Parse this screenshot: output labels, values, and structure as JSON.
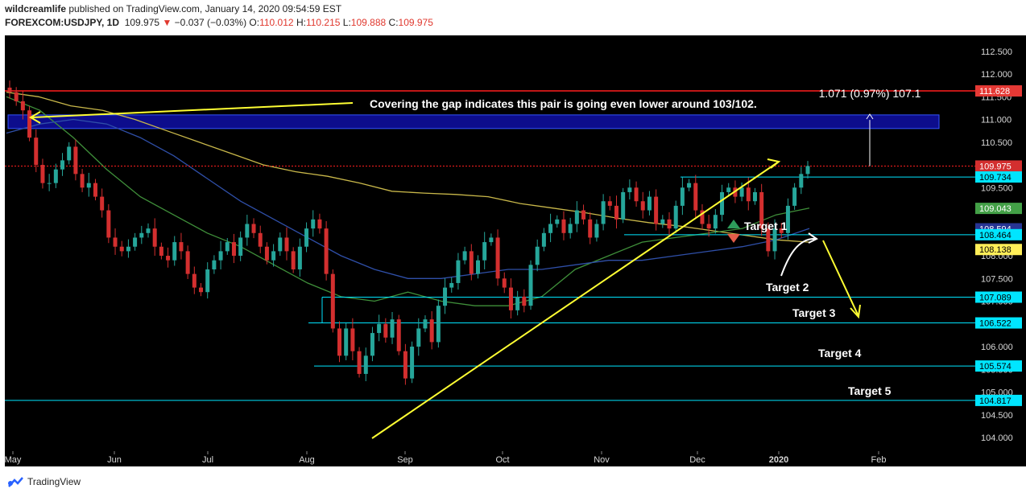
{
  "header": {
    "author": "wildcreamlife",
    "published": "published on TradingView.com, January 14, 2020 09:54:59 EST",
    "symbol": "FOREXCOM:USDJPY, 1D",
    "last": "109.975",
    "change": "−0.037 (−0.03%)",
    "open_label": "O:",
    "open": "110.012",
    "high_label": "H:",
    "high": "110.215",
    "low_label": "L:",
    "low": "109.888",
    "close_label": "C:",
    "close": "109.975"
  },
  "footer": {
    "brand": "TradingView"
  },
  "colors": {
    "background": "#000000",
    "bull": "#26a69a",
    "bear": "#d32f2f",
    "ma_yellow": "#c9b84a",
    "ma_green": "#3f8f3a",
    "ma_blue": "#2f4fa8",
    "cyan": "#00e5ff",
    "resistance": "#ff1e1e",
    "annotation": "#ffff33",
    "gap_zone": "#0d0d8c"
  },
  "chart_data": {
    "type": "candlestick",
    "title": "",
    "ylim": [
      103.7,
      112.85
    ],
    "y_ticks": [
      "112.500",
      "112.000",
      "111.500",
      "111.000",
      "110.500",
      "110.000",
      "109.500",
      "109.000",
      "108.500",
      "108.000",
      "107.500",
      "107.000",
      "106.500",
      "106.000",
      "105.500",
      "105.000",
      "104.500",
      "104.000"
    ],
    "x_ticks": [
      "May",
      "Jun",
      "Jul",
      "Aug",
      "Sep",
      "Oct",
      "Nov",
      "Dec",
      "2020",
      "Feb"
    ],
    "price_labels": [
      {
        "value": 111.628,
        "text": "111.628",
        "bg": "#e53935",
        "fg": "#ffffff"
      },
      {
        "value": 109.975,
        "text": "109.975",
        "bg": "#d32f2f",
        "fg": "#ffffff"
      },
      {
        "value": 109.734,
        "text": "109.734",
        "bg": "#00e5ff",
        "fg": "#000000"
      },
      {
        "value": 109.043,
        "text": "109.043",
        "bg": "#43a047",
        "fg": "#ffffff"
      },
      {
        "value": 108.594,
        "text": "108.594",
        "bg": "#283593",
        "fg": "#ffffff"
      },
      {
        "value": 108.464,
        "text": "108.464",
        "bg": "#00e5ff",
        "fg": "#000000"
      },
      {
        "value": 108.138,
        "text": "108.138",
        "bg": "#ffee58",
        "fg": "#000000"
      },
      {
        "value": 107.089,
        "text": "107.089",
        "bg": "#00e5ff",
        "fg": "#000000"
      },
      {
        "value": 106.522,
        "text": "106.522",
        "bg": "#00e5ff",
        "fg": "#000000"
      },
      {
        "value": 105.574,
        "text": "105.574",
        "bg": "#00e5ff",
        "fg": "#000000"
      },
      {
        "value": 104.817,
        "text": "104.817",
        "bg": "#00e5ff",
        "fg": "#000000"
      }
    ],
    "resistance_line": 111.628,
    "current_price": 109.975,
    "gap_zone": [
      110.8,
      111.1
    ],
    "gap_text": "Covering the gap indicates this pair is going even lower around 103/102.",
    "measure_text": "1.071 (0.97%) 107.1",
    "targets": [
      {
        "label": "Target 1",
        "value": 108.464
      },
      {
        "label": "Target  2",
        "value": 107.7
      },
      {
        "label": "Target 3",
        "value": 106.522
      },
      {
        "label": "Target 4",
        "value": 105.574
      },
      {
        "label": "Target 5",
        "value": 104.817
      }
    ],
    "support_lines": [
      109.734,
      108.464,
      107.089,
      106.522,
      105.574,
      104.817
    ],
    "trendline": {
      "from": {
        "date": "2019-08-26",
        "value": 104.6
      },
      "to": {
        "date": "2020-01-01",
        "value": 109.95
      }
    },
    "closes": [
      111.6,
      111.4,
      111.2,
      110.6,
      110.0,
      109.6,
      109.6,
      109.9,
      110.1,
      110.4,
      109.8,
      109.5,
      109.6,
      109.3,
      109.0,
      108.4,
      108.2,
      108.1,
      108.2,
      108.4,
      108.5,
      108.6,
      108.2,
      108.0,
      107.9,
      108.3,
      108.1,
      107.6,
      107.3,
      107.2,
      107.7,
      107.9,
      108.1,
      108.3,
      108.0,
      108.4,
      108.7,
      108.5,
      108.2,
      107.9,
      108.1,
      108.4,
      108.1,
      107.7,
      108.2,
      108.6,
      108.8,
      108.6,
      107.6,
      106.4,
      105.8,
      106.4,
      105.9,
      105.4,
      105.8,
      106.3,
      106.5,
      106.2,
      106.6,
      105.9,
      105.3,
      106.0,
      106.4,
      106.6,
      106.1,
      106.9,
      107.3,
      107.4,
      107.9,
      108.1,
      107.6,
      107.9,
      108.3,
      108.4,
      107.5,
      107.3,
      106.8,
      107.1,
      106.9,
      107.8,
      108.2,
      108.5,
      108.7,
      108.8,
      108.5,
      108.7,
      109.0,
      108.8,
      108.4,
      108.7,
      109.2,
      109.1,
      108.8,
      109.4,
      109.5,
      109.2,
      109.0,
      109.3,
      108.7,
      108.8,
      108.6,
      109.1,
      109.5,
      109.6,
      109.0,
      108.7,
      108.6,
      108.9,
      109.4,
      109.5,
      109.3,
      109.5,
      109.2,
      109.4,
      108.6,
      108.1,
      108.6,
      108.5,
      109.1,
      109.5,
      109.8,
      109.975
    ],
    "ma_yellow": [
      111.6,
      111.5,
      111.3,
      111.2,
      111.0,
      110.75,
      110.5,
      110.25,
      110.0,
      109.85,
      109.75,
      109.6,
      109.42,
      109.38,
      109.35,
      109.3,
      109.15,
      109.05,
      108.95,
      108.83,
      108.73,
      108.65,
      108.55,
      108.45,
      108.35,
      108.3
    ],
    "ma_green": [
      111.5,
      111.2,
      110.6,
      109.9,
      109.3,
      108.9,
      108.5,
      108.2,
      107.8,
      107.4,
      107.1,
      107.0,
      107.2,
      107.0,
      106.9,
      106.9,
      107.1,
      107.7,
      108.0,
      108.3,
      108.4,
      108.5,
      108.6,
      108.9,
      109.05
    ],
    "ma_blue": [
      110.7,
      110.9,
      111.0,
      110.9,
      110.6,
      110.2,
      109.7,
      109.2,
      108.8,
      108.4,
      108.0,
      107.7,
      107.5,
      107.5,
      107.6,
      107.7,
      107.7,
      107.8,
      107.9,
      107.9,
      108.0,
      108.1,
      108.2,
      108.35,
      108.6
    ]
  }
}
